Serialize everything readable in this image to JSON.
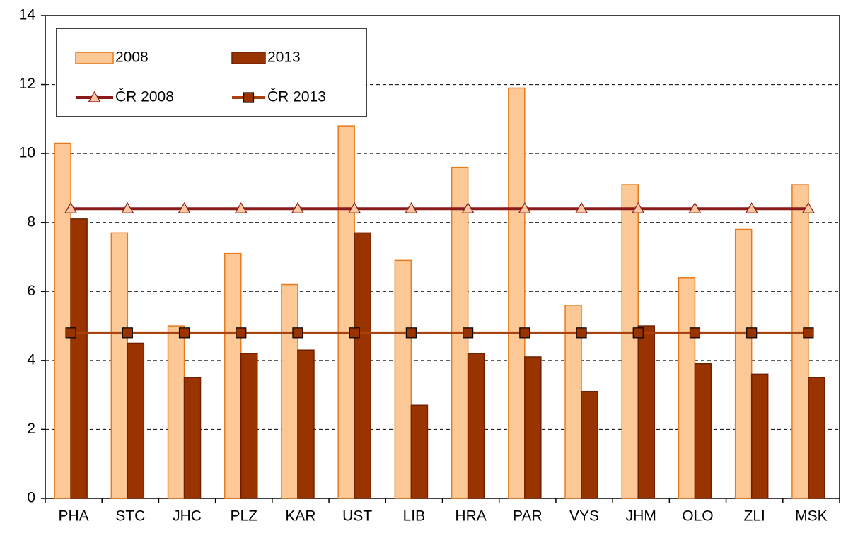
{
  "chart_data": {
    "type": "bar",
    "categories": [
      "PHA",
      "STC",
      "JHC",
      "PLZ",
      "KAR",
      "UST",
      "LIB",
      "HRA",
      "PAR",
      "VYS",
      "JHM",
      "OLO",
      "ZLI",
      "MSK"
    ],
    "series": [
      {
        "name": "2008",
        "type": "bar",
        "color": "#fcc896",
        "stroke": "#e87a1e",
        "values": [
          10.3,
          7.7,
          5.0,
          7.1,
          6.2,
          10.8,
          6.9,
          9.6,
          11.9,
          5.6,
          9.1,
          6.4,
          7.8,
          9.1
        ]
      },
      {
        "name": "2013",
        "type": "bar",
        "color": "#993300",
        "stroke": "#6e2000",
        "values": [
          8.1,
          4.5,
          3.5,
          4.2,
          4.3,
          7.7,
          2.7,
          4.2,
          4.1,
          3.1,
          5.0,
          3.9,
          3.6,
          3.5
        ]
      },
      {
        "name": "ČR 2008",
        "type": "line",
        "color": "#8b1a1a",
        "marker": "triangle",
        "marker_color": "#f9c8a0",
        "values": [
          8.4,
          8.4,
          8.4,
          8.4,
          8.4,
          8.4,
          8.4,
          8.4,
          8.4,
          8.4,
          8.4,
          8.4,
          8.4,
          8.4
        ]
      },
      {
        "name": "ČR 2013",
        "type": "line",
        "color": "#a8420e",
        "marker": "square",
        "marker_color": "#993300",
        "values": [
          4.8,
          4.8,
          4.8,
          4.8,
          4.8,
          4.8,
          4.8,
          4.8,
          4.8,
          4.8,
          4.8,
          4.8,
          4.8,
          4.8
        ]
      }
    ],
    "ylim": [
      0,
      14
    ],
    "yticks": [
      0,
      2,
      4,
      6,
      8,
      10,
      12,
      14
    ],
    "grid": true,
    "legend": "upper left"
  }
}
